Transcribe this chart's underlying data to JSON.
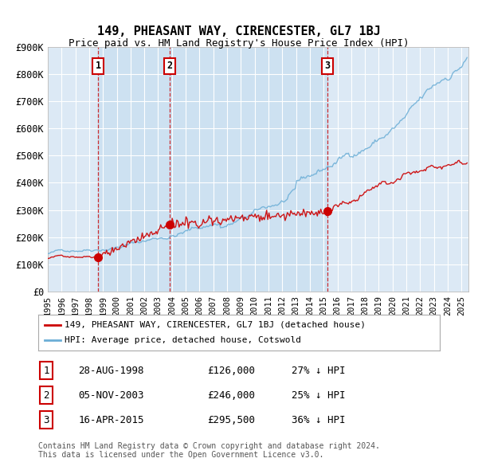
{
  "title": "149, PHEASANT WAY, CIRENCESTER, GL7 1BJ",
  "subtitle": "Price paid vs. HM Land Registry's House Price Index (HPI)",
  "xlabel": "",
  "ylabel": "",
  "ylim": [
    0,
    900000
  ],
  "yticks": [
    0,
    100000,
    200000,
    300000,
    400000,
    500000,
    600000,
    700000,
    800000,
    900000
  ],
  "ytick_labels": [
    "£0",
    "£100K",
    "£200K",
    "£300K",
    "£400K",
    "£500K",
    "£600K",
    "£700K",
    "£800K",
    "£900K"
  ],
  "xlim_start": 1995.0,
  "xlim_end": 2025.5,
  "background_color": "#ffffff",
  "plot_bg_color": "#dce9f5",
  "grid_color": "#ffffff",
  "hpi_line_color": "#6baed6",
  "price_line_color": "#cc0000",
  "dashed_line_color": "#cc0000",
  "shade_color": "#dce9f5",
  "legend_box_color": "#ffffff",
  "sale_points": [
    {
      "year": 1998.65,
      "price": 126000,
      "label": "1"
    },
    {
      "year": 2003.84,
      "price": 246000,
      "label": "2"
    },
    {
      "year": 2015.28,
      "price": 295500,
      "label": "3"
    }
  ],
  "table_rows": [
    {
      "num": "1",
      "date": "28-AUG-1998",
      "price": "£126,000",
      "hpi": "27% ↓ HPI"
    },
    {
      "num": "2",
      "date": "05-NOV-2003",
      "price": "£246,000",
      "hpi": "25% ↓ HPI"
    },
    {
      "num": "3",
      "date": "16-APR-2015",
      "price": "£295,500",
      "hpi": "36% ↓ HPI"
    }
  ],
  "legend_line1": "149, PHEASANT WAY, CIRENCESTER, GL7 1BJ (detached house)",
  "legend_line2": "HPI: Average price, detached house, Cotswold",
  "footer_line1": "Contains HM Land Registry data © Crown copyright and database right 2024.",
  "footer_line2": "This data is licensed under the Open Government Licence v3.0."
}
